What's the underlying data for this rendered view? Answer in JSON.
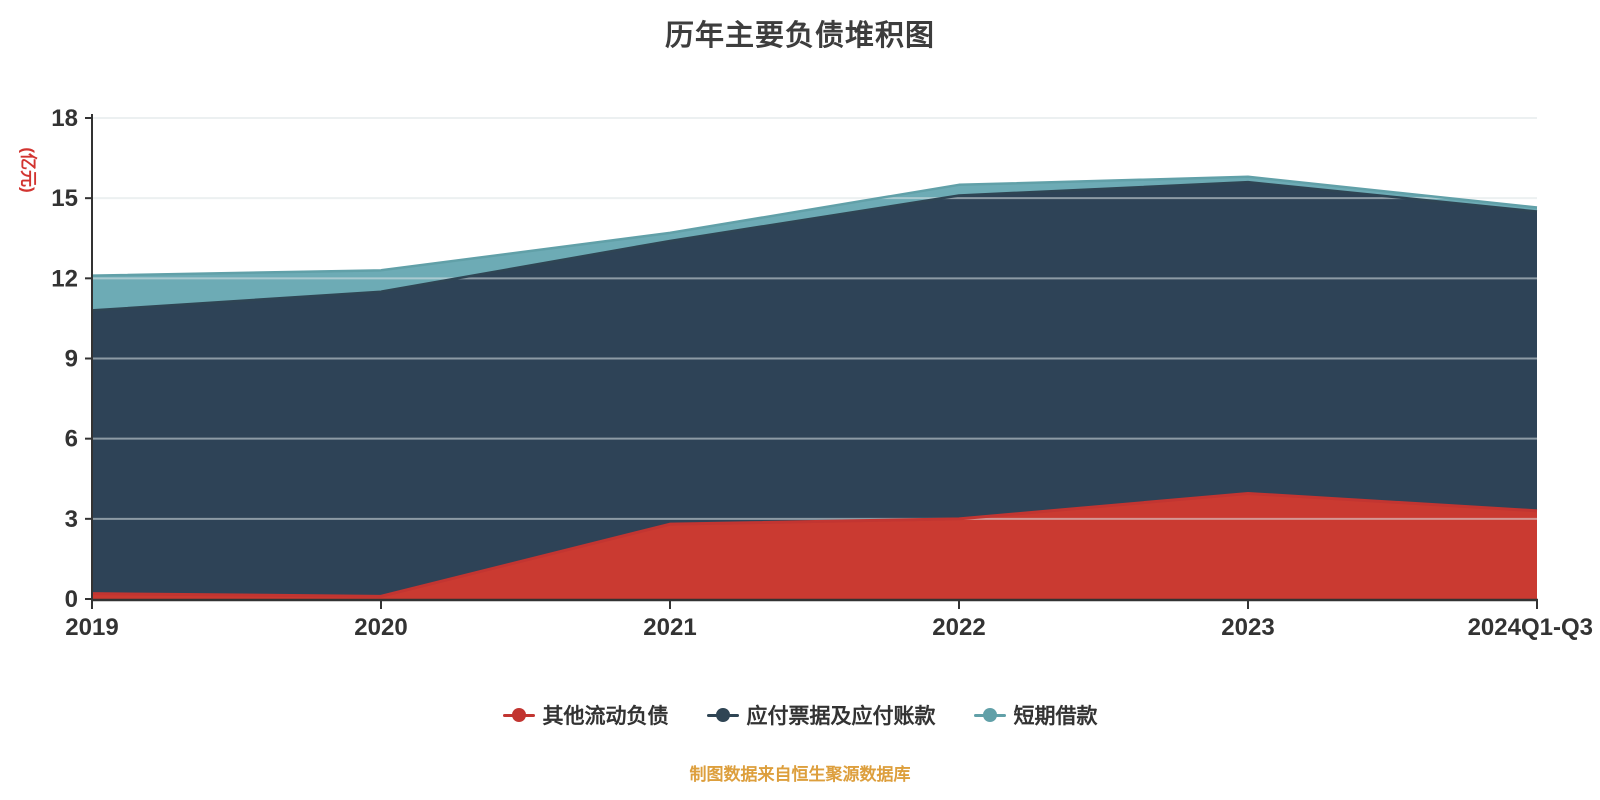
{
  "title": "历年主要负债堆积图",
  "y_axis_name": "(亿元)",
  "footer": "制图数据来自恒生聚源数据库",
  "chart_data": {
    "type": "area",
    "stacked": true,
    "title": "历年主要负债堆积图",
    "ylabel": "(亿元)",
    "xlabel": "",
    "categories": [
      "2019",
      "2020",
      "2021",
      "2022",
      "2023",
      "2024Q1-Q3"
    ],
    "series": [
      {
        "name": "其他流动负债",
        "slug": "other-current-liabilities",
        "color": "#c23531",
        "fill": "#ca3a31",
        "values": [
          0.2,
          0.1,
          2.8,
          3.0,
          3.95,
          3.3
        ]
      },
      {
        "name": "应付票据及应付账款",
        "slug": "notes-and-accounts-payable",
        "color": "#2f4554",
        "fill": "#2e4357",
        "values": [
          10.6,
          11.4,
          10.6,
          12.1,
          11.65,
          11.2
        ]
      },
      {
        "name": "短期借款",
        "slug": "short-term-loans",
        "color": "#61a0a8",
        "fill": "#6dabb5",
        "values": [
          1.3,
          0.8,
          0.3,
          0.4,
          0.2,
          0.15
        ]
      }
    ],
    "ylim": [
      0,
      18
    ],
    "y_ticks": [
      0,
      3,
      6,
      9,
      12,
      15,
      18
    ],
    "grid": true,
    "legend_position": "bottom",
    "axis_color": "#333333",
    "gridline_color": "#dce3e6",
    "tick_label_color": "#333333"
  }
}
